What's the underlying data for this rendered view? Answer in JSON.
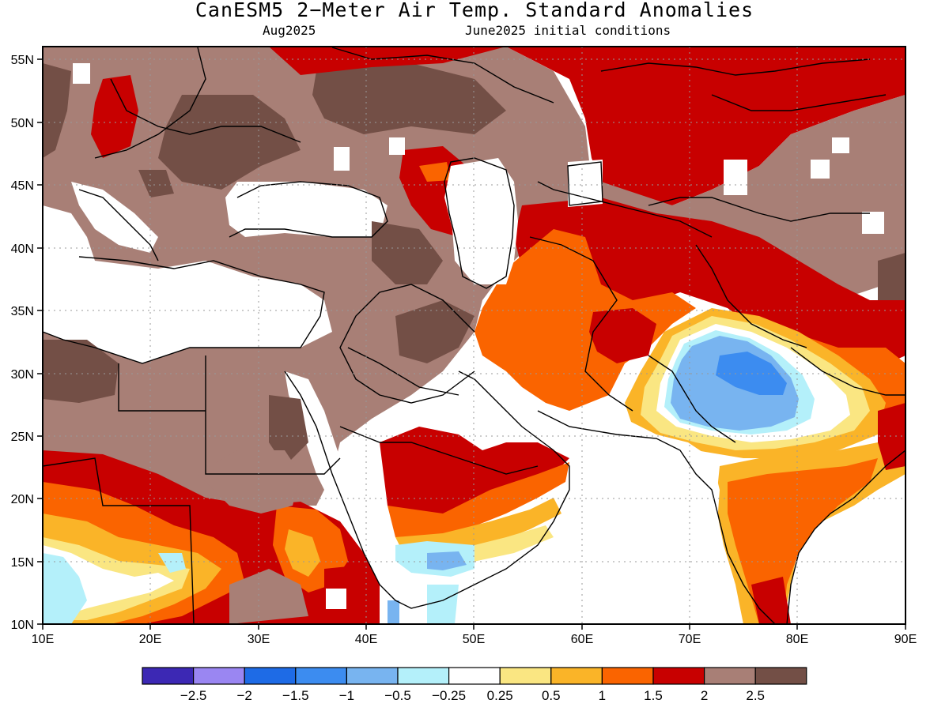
{
  "title": "CanESM5 2−Meter Air Temp. Standard Anomalies",
  "subtitle_left": "Aug2025",
  "subtitle_right": "June2025 initial conditions",
  "map": {
    "lon_range": [
      10,
      90
    ],
    "lat_range": [
      10,
      56
    ],
    "lon_ticks": [
      "10E",
      "20E",
      "30E",
      "40E",
      "50E",
      "60E",
      "70E",
      "80E",
      "90E"
    ],
    "lat_ticks": [
      "10N",
      "15N",
      "20N",
      "25N",
      "30N",
      "35N",
      "40N",
      "45N",
      "50N",
      "55N"
    ],
    "gridlines": "dotted"
  },
  "colorbar": {
    "colors": [
      "#3c28b4",
      "#9a86f2",
      "#1e6be6",
      "#3c8cf0",
      "#78b4f0",
      "#b4f0fa",
      "#ffffff",
      "#fae682",
      "#fab428",
      "#fa6400",
      "#c80000",
      "#a87f76",
      "#734f46"
    ],
    "labels": [
      "−2.5",
      "−2",
      "−1.5",
      "−1",
      "−0.5",
      "−0.25",
      "0.25",
      "0.5",
      "1",
      "1.5",
      "2",
      "2.5"
    ]
  },
  "chart_data": {
    "type": "heatmap",
    "title": "CanESM5 2−Meter Air Temp. Standard Anomalies",
    "subtitle": "Aug2025 / June2025 initial conditions",
    "variable": "2-meter air temperature standardized anomaly",
    "x_axis": {
      "ticks": [
        "10E",
        "20E",
        "30E",
        "40E",
        "50E",
        "60E",
        "70E",
        "80E",
        "90E"
      ],
      "range": [
        10,
        90
      ]
    },
    "y_axis": {
      "ticks": [
        "10N",
        "15N",
        "20N",
        "25N",
        "30N",
        "35N",
        "40N",
        "45N",
        "50N",
        "55N"
      ],
      "range": [
        10,
        56
      ]
    },
    "color_levels": [
      -2.5,
      -2,
      -1.5,
      -1,
      -0.5,
      -0.25,
      0.25,
      0.5,
      1,
      1.5,
      2,
      2.5
    ]
  }
}
